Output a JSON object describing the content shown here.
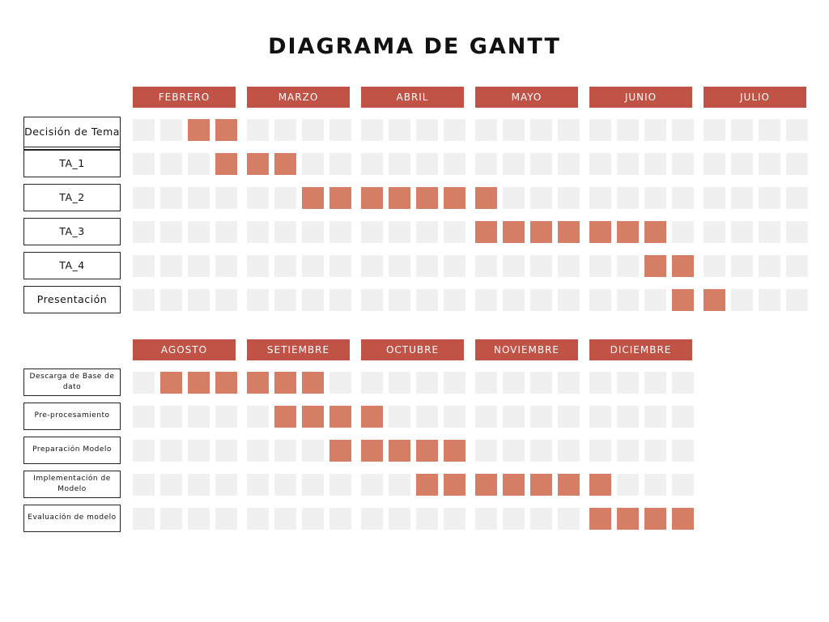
{
  "title": "DIAGRAMA DE GANTT",
  "colors": {
    "header_bg": "#c05346",
    "active_cell": "#d67d66",
    "inactive_cell": "#f0f0f0"
  },
  "sections": [
    {
      "months": [
        "FEBRERO",
        "MARZO",
        "ABRIL",
        "MAYO",
        "JUNIO",
        "JULIO"
      ],
      "weeks_per_month": 4,
      "tasks": [
        {
          "label": "Decisión de Tema",
          "weeks": [
            3,
            4
          ]
        },
        {
          "label": "TA_1",
          "weeks": [
            4,
            5,
            6
          ]
        },
        {
          "label": "TA_2",
          "weeks": [
            7,
            8,
            9,
            10,
            11,
            12,
            13
          ]
        },
        {
          "label": "TA_3",
          "weeks": [
            13,
            14,
            15,
            16,
            17,
            18,
            19
          ]
        },
        {
          "label": "TA_4",
          "weeks": [
            19,
            20
          ]
        },
        {
          "label": "Presentación",
          "weeks": [
            20,
            21
          ]
        }
      ]
    },
    {
      "months": [
        "AGOSTO",
        "SETIEMBRE",
        "OCTUBRE",
        "NOVIEMBRE",
        "DICIEMBRE"
      ],
      "weeks_per_month": 4,
      "tasks": [
        {
          "label": "Descarga de Base de dato",
          "weeks": [
            2,
            3,
            4,
            5,
            6,
            7
          ]
        },
        {
          "label": "Pre-procesamiento",
          "weeks": [
            6,
            7,
            8,
            9
          ]
        },
        {
          "label": "Preparación Modelo",
          "weeks": [
            8,
            9,
            10,
            11,
            12
          ]
        },
        {
          "label": "Implementación de Modelo",
          "weeks": [
            11,
            12,
            13,
            14,
            15,
            16,
            17
          ]
        },
        {
          "label": "Evaluación de modelo",
          "weeks": [
            17,
            18,
            19,
            20
          ]
        }
      ]
    }
  ]
}
